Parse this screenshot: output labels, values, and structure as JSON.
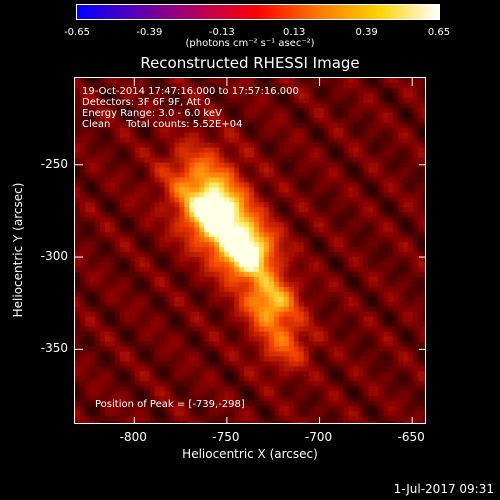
{
  "chart_data": {
    "type": "heatmap",
    "title": "Reconstructed RHESSI Image",
    "xlabel": "Heliocentric X (arcsec)",
    "ylabel": "Heliocentric Y (arcsec)",
    "xlim": [
      -832,
      -642
    ],
    "ylim": [
      -391,
      -203
    ],
    "xticks": [
      "-800",
      "-750",
      "-700",
      "-650"
    ],
    "xtick_values": [
      -800,
      -750,
      -700,
      -650
    ],
    "yticks": [
      "-250",
      "-300",
      "-350"
    ],
    "ytick_values": [
      -250,
      -300,
      -350
    ],
    "colorbar": {
      "ticks": [
        "-0.65",
        "-0.39",
        "-0.13",
        "0.13",
        "0.39",
        "0.65"
      ],
      "tick_values": [
        -0.65,
        -0.39,
        -0.13,
        0.13,
        0.39,
        0.65
      ],
      "range": [
        -0.65,
        0.65
      ],
      "units": "(photons cm⁻² s⁻¹ asec⁻²)",
      "colors": [
        "#0000ff",
        "#5a00b4",
        "#b4005a",
        "#ff0000",
        "#ff7800",
        "#ffd200",
        "#ffffff"
      ]
    },
    "annotations": [
      "19-Oct-2014 17:47:16.000 to 17:57:16.000",
      "Detectors: 3F 6F 9F, Att 0",
      "Energy Range: 3.0 - 6.0 keV",
      "Clean     Total counts: 5.52E+04"
    ],
    "peak_label": "Position of Peak = [-739,-298]",
    "peak": [
      -739,
      -298
    ],
    "sources": [
      {
        "x": -755,
        "y": -278,
        "amplitude": 0.62,
        "width": 12
      },
      {
        "x": -739,
        "y": -298,
        "amplitude": 0.65,
        "width": 11
      },
      {
        "x": -726,
        "y": -325,
        "amplitude": 0.45,
        "width": 10
      },
      {
        "x": -765,
        "y": -258,
        "amplitude": 0.3,
        "width": 14
      },
      {
        "x": -718,
        "y": -348,
        "amplitude": 0.25,
        "width": 10
      }
    ]
  },
  "footer": "1-Jul-2017 09:31"
}
